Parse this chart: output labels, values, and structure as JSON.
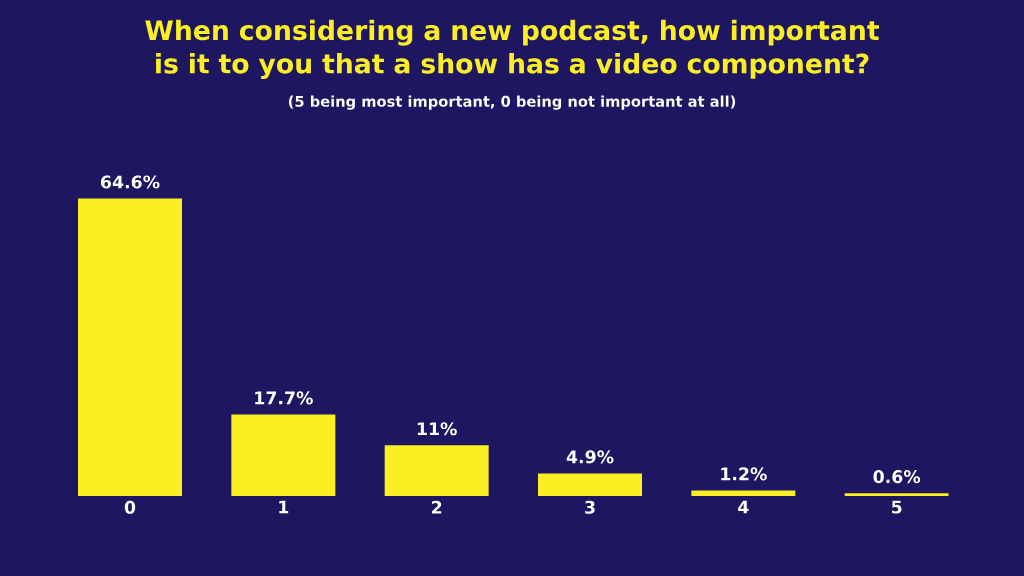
{
  "chart_data": {
    "type": "bar",
    "title": "When considering a new podcast, how important is it to you that a show has a video component?",
    "subtitle": "(5 being most important, 0 being not important at all)",
    "categories": [
      "0",
      "1",
      "2",
      "3",
      "4",
      "5"
    ],
    "values": [
      64.6,
      17.7,
      11,
      4.9,
      1.2,
      0.6
    ],
    "value_labels": [
      "64.6%",
      "17.7%",
      "11%",
      "4.9%",
      "1.2%",
      "0.6%"
    ],
    "color": "#fbef24"
  }
}
